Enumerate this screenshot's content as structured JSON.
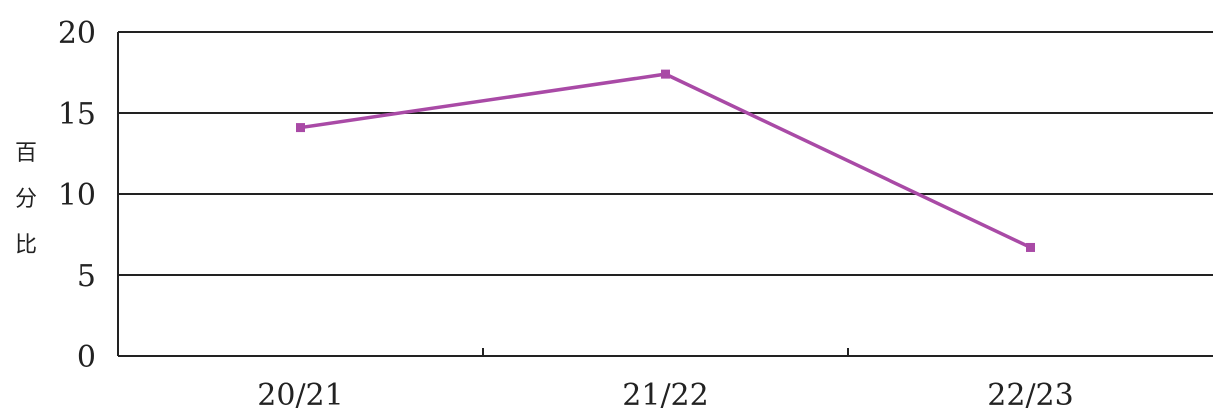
{
  "chart_data": {
    "type": "line",
    "categories": [
      "20/21",
      "21/22",
      "22/23"
    ],
    "series": [
      {
        "values": [
          14.1,
          17.4,
          6.7
        ]
      }
    ],
    "ylabel": [
      "百",
      "分",
      "比"
    ],
    "y_ticks": [
      "0",
      "5",
      "10",
      "15",
      "20"
    ],
    "ylim": [
      0,
      20
    ],
    "grid": true,
    "colors": {
      "line": "#a94aa6",
      "grid": "#222222"
    }
  }
}
